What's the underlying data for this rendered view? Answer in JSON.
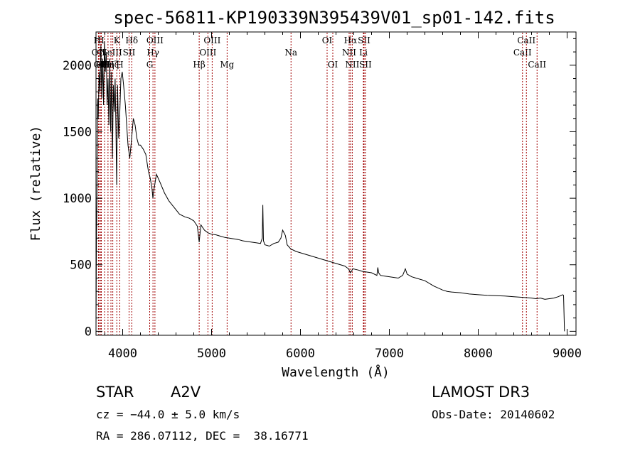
{
  "chart_data": {
    "type": "line",
    "title": "spec-56811-KP190339N395439V01_sp01-142.fits",
    "xlabel": "Wavelength (Å)",
    "ylabel": "Flux (relative)",
    "xlim": [
      3700,
      9100
    ],
    "ylim": [
      -30,
      2250
    ],
    "xticks": [
      4000,
      5000,
      6000,
      7000,
      8000,
      9000
    ],
    "yticks": [
      0,
      500,
      1000,
      1500,
      2000
    ],
    "series": [
      {
        "name": "spectrum",
        "x": [
          3700,
          3705,
          3710,
          3718,
          3725,
          3735,
          3745,
          3755,
          3765,
          3775,
          3785,
          3795,
          3805,
          3815,
          3825,
          3835,
          3845,
          3855,
          3865,
          3875,
          3885,
          3895,
          3905,
          3915,
          3925,
          3933,
          3942,
          3955,
          3968,
          3980,
          3995,
          4010,
          4030,
          4060,
          4080,
          4101,
          4120,
          4140,
          4160,
          4180,
          4200,
          4230,
          4260,
          4290,
          4310,
          4330,
          4340,
          4350,
          4380,
          4420,
          4470,
          4520,
          4580,
          4640,
          4700,
          4750,
          4800,
          4840,
          4861,
          4880,
          4920,
          4960,
          5000,
          5050,
          5100,
          5150,
          5200,
          5250,
          5300,
          5350,
          5400,
          5450,
          5500,
          5550,
          5570,
          5577,
          5584,
          5600,
          5650,
          5700,
          5750,
          5780,
          5800,
          5830,
          5850,
          5890,
          5950,
          6000,
          6100,
          6200,
          6300,
          6400,
          6500,
          6540,
          6563,
          6590,
          6650,
          6700,
          6800,
          6860,
          6870,
          6880,
          6900,
          6950,
          7000,
          7100,
          7150,
          7180,
          7200,
          7250,
          7300,
          7400,
          7500,
          7600,
          7650,
          7700,
          7800,
          7900,
          8000,
          8100,
          8200,
          8300,
          8400,
          8500,
          8600,
          8650,
          8700,
          8750,
          8800,
          8850,
          8900,
          8950,
          8960,
          8970
        ],
        "values": [
          0,
          700,
          1000,
          1750,
          1600,
          1950,
          1800,
          2150,
          1750,
          2050,
          1700,
          2180,
          1950,
          2100,
          1700,
          1900,
          1550,
          2050,
          1500,
          1950,
          1300,
          1850,
          1650,
          1900,
          1500,
          1100,
          1850,
          1450,
          1650,
          1900,
          1950,
          1850,
          1700,
          1400,
          1300,
          1450,
          1600,
          1550,
          1450,
          1400,
          1400,
          1370,
          1330,
          1200,
          1150,
          1070,
          1000,
          1060,
          1180,
          1120,
          1040,
          980,
          930,
          880,
          860,
          850,
          830,
          790,
          670,
          800,
          760,
          740,
          730,
          725,
          715,
          705,
          700,
          695,
          690,
          680,
          675,
          670,
          665,
          660,
          700,
          950,
          680,
          650,
          640,
          660,
          670,
          700,
          760,
          720,
          650,
          620,
          600,
          590,
          570,
          550,
          530,
          510,
          490,
          470,
          440,
          470,
          460,
          450,
          440,
          420,
          480,
          440,
          420,
          415,
          410,
          400,
          420,
          470,
          430,
          410,
          400,
          380,
          340,
          310,
          300,
          295,
          290,
          280,
          275,
          270,
          268,
          265,
          260,
          255,
          250,
          245,
          250,
          240,
          245,
          250,
          260,
          275,
          270,
          0
        ]
      }
    ],
    "lines": [
      {
        "wl": 3727,
        "label": "OII",
        "row": 2
      },
      {
        "wl": 3734,
        "label": "HI",
        "row": 1
      },
      {
        "wl": 3750,
        "label": "OII",
        "row": 3
      },
      {
        "wl": 3760,
        "label": "HI",
        "row": 3
      },
      {
        "wl": 3797,
        "label": "HI",
        "row": 3
      },
      {
        "wl": 3835,
        "label": "Hη",
        "row": 3
      },
      {
        "wl": 3868,
        "label": "NeIII",
        "row": 2
      },
      {
        "wl": 3889,
        "label": "Hζ",
        "row": 3
      },
      {
        "wl": 3934,
        "label": "K",
        "row": 1
      },
      {
        "wl": 3968,
        "label": "H",
        "row": 3
      },
      {
        "wl": 4072,
        "label": "SII",
        "row": 2
      },
      {
        "wl": 4102,
        "label": "Hδ",
        "row": 1
      },
      {
        "wl": 4304,
        "label": "G",
        "row": 3
      },
      {
        "wl": 4341,
        "label": "Hγ",
        "row": 2
      },
      {
        "wl": 4363,
        "label": "OIII",
        "row": 1
      },
      {
        "wl": 4861,
        "label": "Hβ",
        "row": 3
      },
      {
        "wl": 4959,
        "label": "OIII",
        "row": 2
      },
      {
        "wl": 5007,
        "label": "OIII",
        "row": 1
      },
      {
        "wl": 5175,
        "label": "Mg",
        "row": 3
      },
      {
        "wl": 5894,
        "label": "Na",
        "row": 2
      },
      {
        "wl": 6300,
        "label": "OI",
        "row": 1
      },
      {
        "wl": 6364,
        "label": "OI",
        "row": 3
      },
      {
        "wl": 6548,
        "label": "NII",
        "row": 2
      },
      {
        "wl": 6563,
        "label": "Hα",
        "row": 1
      },
      {
        "wl": 6583,
        "label": "NII",
        "row": 3
      },
      {
        "wl": 6708,
        "label": "Li",
        "row": 2
      },
      {
        "wl": 6716,
        "label": "SII",
        "row": 1
      },
      {
        "wl": 6731,
        "label": "SII",
        "row": 3
      },
      {
        "wl": 8498,
        "label": "CaII",
        "row": 2
      },
      {
        "wl": 8542,
        "label": "CaII",
        "row": 1
      },
      {
        "wl": 8662,
        "label": "CaII",
        "row": 3
      }
    ]
  },
  "info": {
    "class_label": "STAR",
    "subclass": "A2V",
    "survey": "LAMOST DR3",
    "velocity": "cz = −44.0 ± 5.0 km/s",
    "obs_date": "Obs-Date: 20140602",
    "coords": "RA = 286.07112, DEC =  38.16771"
  }
}
